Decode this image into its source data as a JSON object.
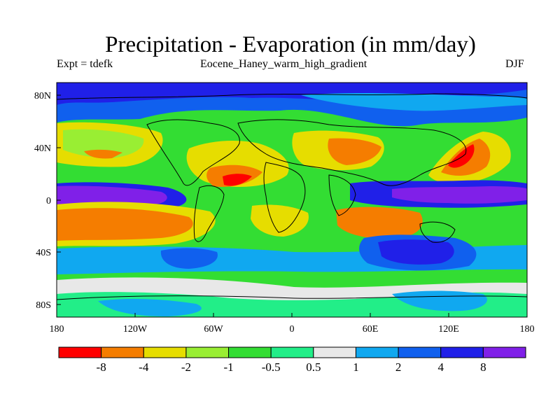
{
  "title": "Precipitation - Evaporation (in mm/day)",
  "subtitle_left": "Expt = tdefk",
  "subtitle_center": "Eocene_Haney_warm_high_gradient",
  "subtitle_right": "DJF",
  "x_tick_labels": [
    "180",
    "120W",
    "60W",
    "0",
    "60E",
    "120E",
    "180"
  ],
  "y_tick_labels": [
    "80N",
    "40N",
    "0",
    "40S",
    "80S"
  ],
  "colorbar": {
    "colors": [
      "#ff0000",
      "#f57d00",
      "#e6dd00",
      "#99ee33",
      "#33dd33",
      "#22ee88",
      "#e8e8e8",
      "#10a8f0",
      "#1060ee",
      "#2020e8",
      "#8020e8"
    ],
    "labels": [
      "-8",
      "-4",
      "-2",
      "-1",
      "-0.5",
      "0.5",
      "1",
      "2",
      "4",
      "8"
    ]
  }
}
